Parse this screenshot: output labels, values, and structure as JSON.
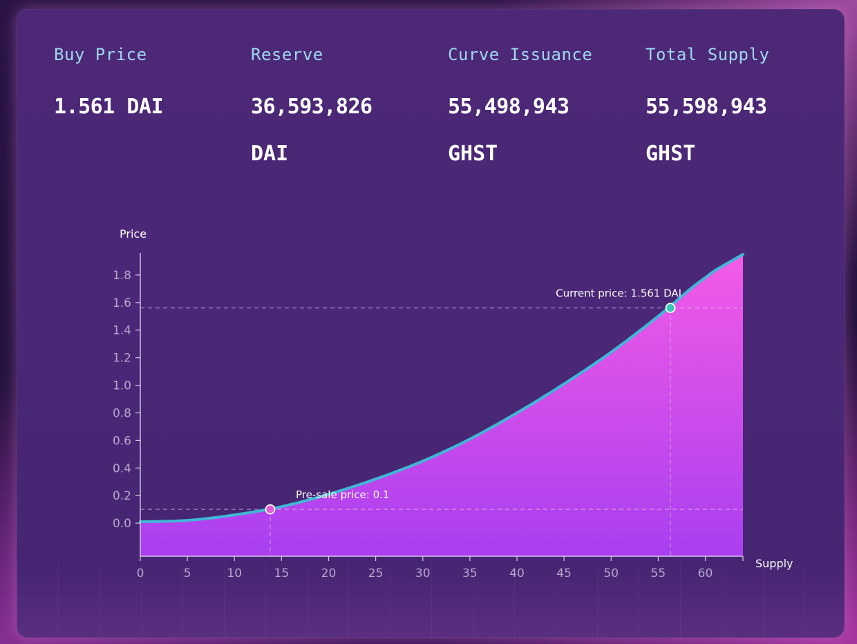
{
  "stats": {
    "buy_price": {
      "label": "Buy Price",
      "value": "1.561 DAI",
      "unit": ""
    },
    "reserve": {
      "label": "Reserve",
      "value": "36,593,826",
      "unit": "DAI"
    },
    "curve_issuance": {
      "label": "Curve Issuance",
      "value": "55,498,943",
      "unit": "GHST"
    },
    "total_supply": {
      "label": "Total Supply",
      "value": "55,598,943",
      "unit": "GHST"
    }
  },
  "colors": {
    "label": "#9fd8f2",
    "curve_line": "#3fb8d6",
    "fill_top": "#f35be6",
    "fill_bottom": "#a93ff0",
    "current_marker": "#36c6b6",
    "presale_marker": "#e35bd8"
  },
  "chart_data": {
    "type": "area",
    "xlabel": "Supply",
    "ylabel": "Price",
    "xlim": [
      0,
      64
    ],
    "ylim": [
      -0.24,
      1.95
    ],
    "xticks": [
      0,
      5,
      10,
      15,
      20,
      25,
      30,
      35,
      40,
      45,
      50,
      55,
      60
    ],
    "yticks": [
      0.0,
      0.2,
      0.4,
      0.6,
      0.8,
      1.0,
      1.2,
      1.4,
      1.6,
      1.8
    ],
    "ytick_labels": [
      "0.0",
      "0.2",
      "0.4",
      "0.6",
      "0.8",
      "1.0",
      "1.2",
      "1.4",
      "1.6",
      "1.8"
    ],
    "series": [
      {
        "x": [
          0,
          5,
          10,
          15,
          20,
          25,
          30,
          35,
          40,
          45,
          50,
          55,
          60,
          64
        ],
        "values": [
          0.01,
          0.02,
          0.06,
          0.12,
          0.21,
          0.32,
          0.45,
          0.61,
          0.8,
          1.01,
          1.24,
          1.5,
          1.78,
          1.95
        ]
      }
    ],
    "annotations": [
      {
        "name": "current-price",
        "label": "Current price: 1.561 DAI",
        "x": 56.3,
        "y": 1.561
      },
      {
        "name": "presale-price",
        "label": "Pre-sale price: 0.1",
        "x": 13.8,
        "y": 0.1
      }
    ],
    "grid": false,
    "legend": "none"
  }
}
